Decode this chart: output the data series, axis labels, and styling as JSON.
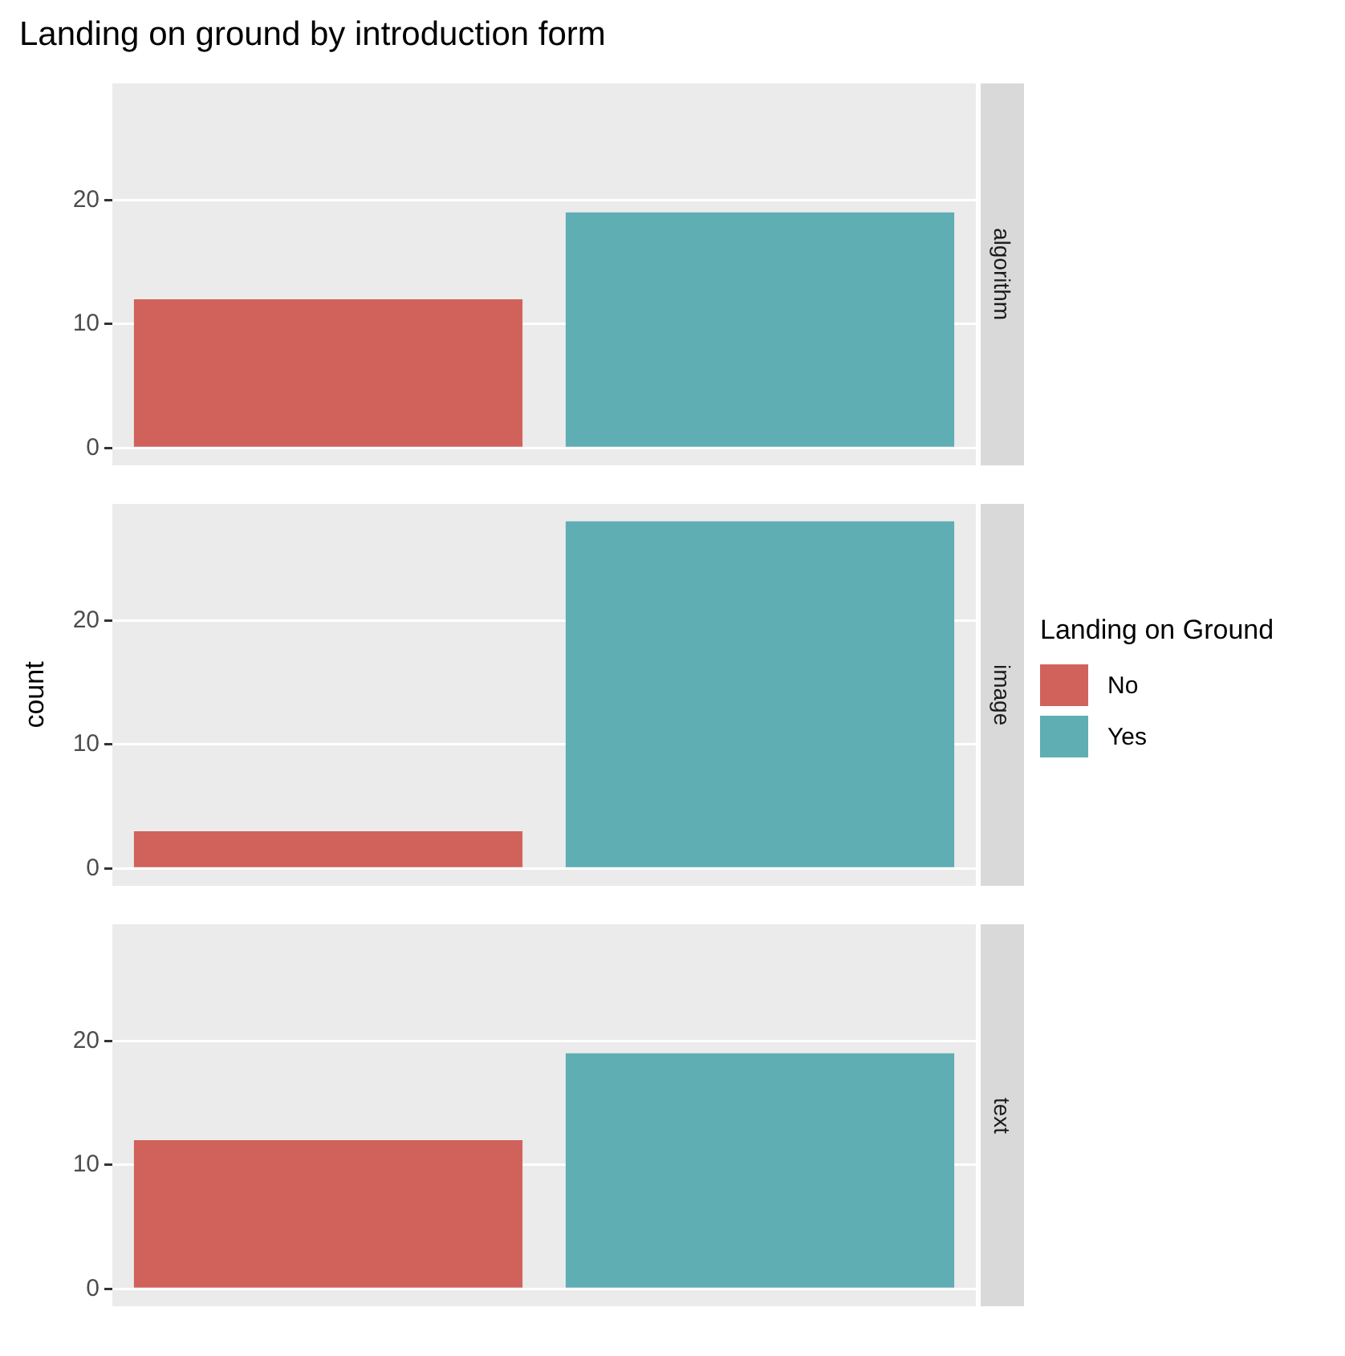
{
  "chart_data": [
    {
      "type": "bar",
      "title": "Landing on ground by introduction form",
      "y2label": "algorithm",
      "categories": [
        null,
        null
      ],
      "series": [
        {
          "color": "#d1625b",
          "values": [
            12,
            null
          ]
        },
        {
          "color": "#5eaeb4",
          "values": [
            null,
            19
          ]
        }
      ],
      "ylim": [
        -1.4,
        29.4
      ],
      "yticks": [
        0,
        10,
        20
      ],
      "grid": "y",
      "tick_labels": "y",
      "legend": false
    },
    {
      "type": "bar",
      "y2label": "image",
      "ylabel": "count",
      "legend_title": "Landing on Ground",
      "categories": [
        null,
        null
      ],
      "series": [
        {
          "name": "No",
          "color": "#d1625b",
          "values": [
            3,
            null
          ]
        },
        {
          "name": "Yes",
          "color": "#5eaeb4",
          "values": [
            null,
            28
          ]
        }
      ],
      "ylim": [
        -1.4,
        29.4
      ],
      "yticks": [
        0,
        10,
        20
      ],
      "grid": "y",
      "tick_labels": "y",
      "legend": "right"
    },
    {
      "type": "bar",
      "y2label": "text",
      "categories": [
        null,
        null
      ],
      "series": [
        {
          "color": "#d1625b",
          "values": [
            12,
            null
          ]
        },
        {
          "color": "#5eaeb4",
          "values": [
            null,
            19
          ]
        }
      ],
      "ylim": [
        -1.4,
        29.4
      ],
      "yticks": [
        0,
        10,
        20
      ],
      "grid": "y",
      "tick_labels": "y",
      "legend": false
    }
  ]
}
